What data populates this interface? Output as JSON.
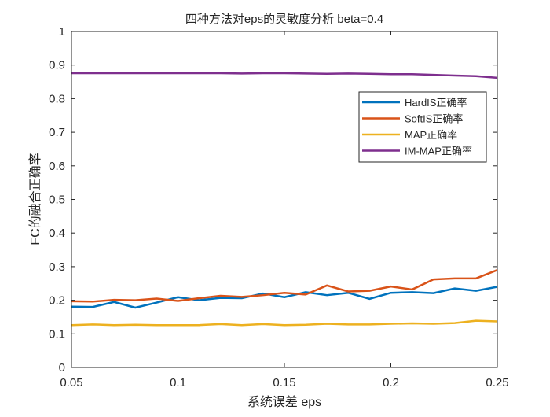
{
  "chart_data": {
    "type": "line",
    "title": "四种方法对eps的灵敏度分析 beta=0.4",
    "xlabel": "系统误差 eps",
    "ylabel": "FC的融合正确率",
    "xlim": [
      0.05,
      0.25
    ],
    "ylim": [
      0,
      1
    ],
    "x_ticks": [
      0.05,
      0.1,
      0.15,
      0.2,
      0.25
    ],
    "x_tick_labels": [
      "0.05",
      "0.1",
      "0.15",
      "0.2",
      "0.25"
    ],
    "y_ticks": [
      0,
      0.1,
      0.2,
      0.3,
      0.4,
      0.5,
      0.6,
      0.7,
      0.8,
      0.9,
      1
    ],
    "y_tick_labels": [
      "0",
      "0.1",
      "0.2",
      "0.3",
      "0.4",
      "0.5",
      "0.6",
      "0.7",
      "0.8",
      "0.9",
      "1"
    ],
    "grid": false,
    "legend_position": "top-right",
    "x": [
      0.05,
      0.06,
      0.07,
      0.08,
      0.09,
      0.1,
      0.11,
      0.12,
      0.13,
      0.14,
      0.15,
      0.16,
      0.17,
      0.18,
      0.19,
      0.2,
      0.21,
      0.22,
      0.23,
      0.24,
      0.25
    ],
    "series": [
      {
        "name": "HardIS正确率",
        "color": "#0072BD",
        "values": [
          0.181,
          0.18,
          0.195,
          0.178,
          0.193,
          0.209,
          0.2,
          0.207,
          0.206,
          0.22,
          0.209,
          0.224,
          0.215,
          0.222,
          0.204,
          0.222,
          0.224,
          0.221,
          0.235,
          0.228,
          0.24
        ]
      },
      {
        "name": "SoftIS正确率",
        "color": "#D95319",
        "values": [
          0.197,
          0.196,
          0.201,
          0.2,
          0.205,
          0.198,
          0.206,
          0.213,
          0.21,
          0.215,
          0.222,
          0.217,
          0.244,
          0.226,
          0.228,
          0.241,
          0.232,
          0.262,
          0.265,
          0.265,
          0.29
        ]
      },
      {
        "name": "MAP正确率",
        "color": "#EDB120",
        "values": [
          0.126,
          0.128,
          0.126,
          0.127,
          0.126,
          0.126,
          0.126,
          0.129,
          0.126,
          0.129,
          0.126,
          0.127,
          0.13,
          0.128,
          0.128,
          0.13,
          0.131,
          0.13,
          0.132,
          0.139,
          0.137
        ]
      },
      {
        "name": "IM-MAP正确率",
        "color": "#7E2F8E",
        "values": [
          0.876,
          0.876,
          0.876,
          0.876,
          0.876,
          0.876,
          0.876,
          0.876,
          0.875,
          0.876,
          0.876,
          0.875,
          0.874,
          0.875,
          0.874,
          0.873,
          0.873,
          0.871,
          0.869,
          0.867,
          0.862
        ]
      }
    ]
  }
}
